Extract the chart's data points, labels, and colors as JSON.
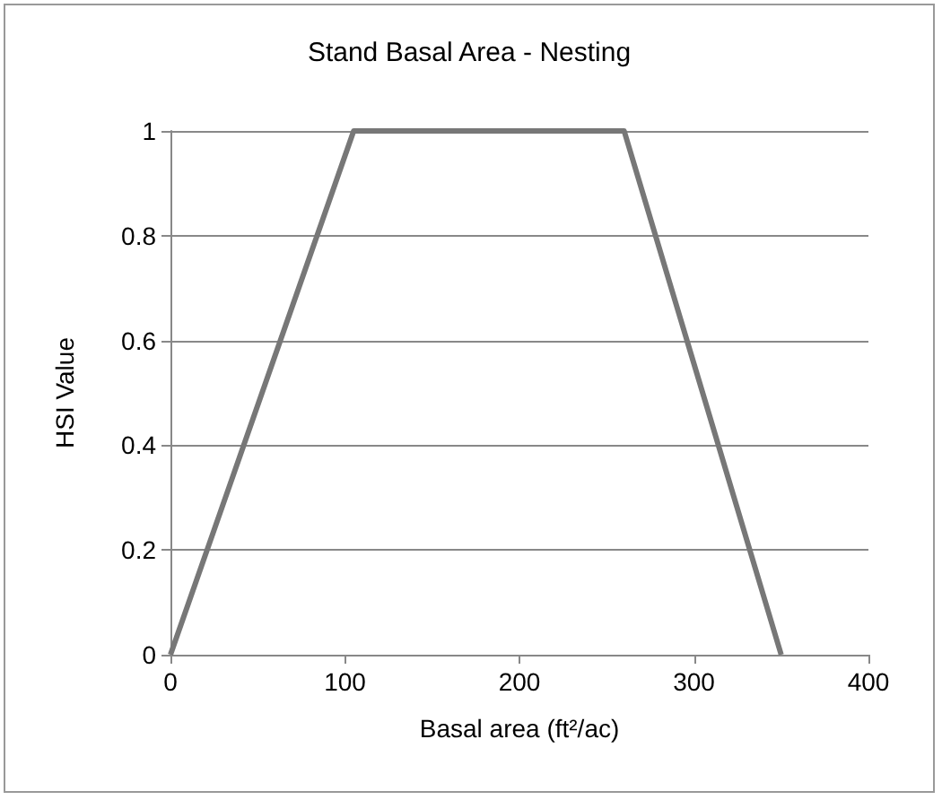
{
  "chart_data": {
    "type": "line",
    "title": "Stand Basal Area - Nesting",
    "xlabel": "Basal area (ft²/ac)",
    "ylabel": "HSI Value",
    "x": [
      0,
      105,
      260,
      350
    ],
    "series": [
      {
        "color": "#777777",
        "values": [
          0,
          1,
          1,
          0
        ]
      }
    ],
    "xlim": [
      0,
      400
    ],
    "xticks": [
      0,
      100,
      200,
      300,
      400
    ],
    "ylim": [
      0,
      1
    ],
    "yticks": [
      0,
      0.2,
      0.4,
      0.6,
      0.8,
      1
    ],
    "grid": "y",
    "marker": "none",
    "line_style": "solid"
  }
}
